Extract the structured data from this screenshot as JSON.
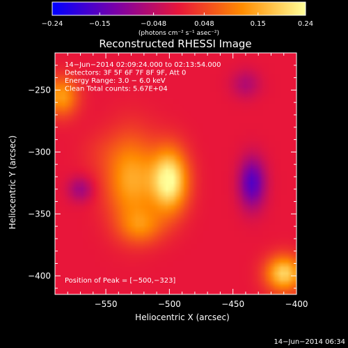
{
  "chart_data": {
    "type": "heatmap",
    "title": "Reconstructed RHESSI Image",
    "xlabel": "Heliocentric X (arcsec)",
    "ylabel": "Heliocentric Y (arcsec)",
    "xlim": [
      -590,
      -400
    ],
    "ylim": [
      -415,
      -220
    ],
    "x_ticks": [
      -550,
      -500,
      -450,
      -400
    ],
    "y_ticks": [
      -250,
      -300,
      -350,
      -400
    ],
    "x_tick_labels": [
      "−550",
      "−500",
      "−450",
      "−400"
    ],
    "y_tick_labels": [
      "−250",
      "−300",
      "−350",
      "−400"
    ],
    "colorbar": {
      "range": [
        -0.24,
        0.24
      ],
      "ticks": [
        -0.24,
        -0.15,
        -0.048,
        0.048,
        0.15,
        0.24
      ],
      "tick_labels": [
        "−0.24",
        "−0.15",
        "−0.048",
        "0.048",
        "0.15",
        "0.24"
      ],
      "unit_label": "(photons cm⁻² s⁻¹ asec⁻²)",
      "colors": [
        "#0000ff",
        "#7a00a8",
        "#e8163a",
        "#ff8c00",
        "#ffff9a"
      ]
    },
    "info_lines": [
      "14−Jun−2014 02:09:24.000 to 02:13:54.000",
      "Detectors: 3F 5F 6F 7F 8F 9F, Att 0",
      "Energy Range: 3.0 − 6.0 keV",
      "Clean     Total counts: 5.67E+04"
    ],
    "peak_label": "Position of Peak = [−500,−323]",
    "peak": [
      -500,
      -323
    ],
    "components": [
      {
        "x": -500,
        "y": -323,
        "amp": 0.24,
        "sx": 10,
        "sy": 18
      },
      {
        "x": -530,
        "y": -322,
        "amp": 0.15,
        "sx": 14,
        "sy": 25
      },
      {
        "x": -522,
        "y": -360,
        "amp": 0.09,
        "sx": 12,
        "sy": 10
      },
      {
        "x": -555,
        "y": -300,
        "amp": 0.02,
        "sx": 12,
        "sy": 12
      },
      {
        "x": -585,
        "y": -255,
        "amp": 0.14,
        "sx": 9,
        "sy": 11
      },
      {
        "x": -410,
        "y": -398,
        "amp": 0.2,
        "sx": 10,
        "sy": 10
      },
      {
        "x": -435,
        "y": -325,
        "amp": -0.16,
        "sx": 7,
        "sy": 14
      },
      {
        "x": -570,
        "y": -330,
        "amp": -0.08,
        "sx": 7,
        "sy": 7
      },
      {
        "x": -440,
        "y": -245,
        "amp": -0.06,
        "sx": 8,
        "sy": 8
      }
    ],
    "background_level": 0.0
  },
  "footer_date": "14−Jun−2014 06:34"
}
